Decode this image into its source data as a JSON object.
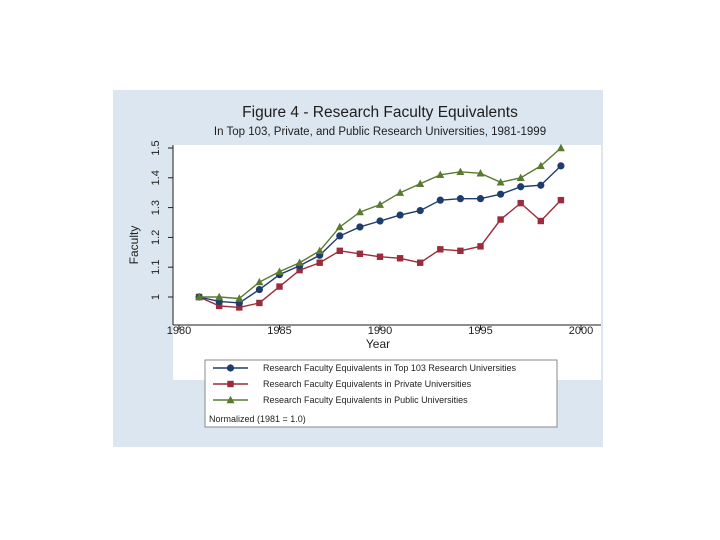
{
  "chart_data": {
    "type": "line",
    "title": "Figure 4 - Research Faculty Equivalents",
    "subtitle": "In Top 103, Private, and Public Research Universities, 1981-1999",
    "xlabel": "Year",
    "ylabel": "Faculty",
    "xlim": [
      1980,
      2000
    ],
    "ylim": [
      0.95,
      1.5
    ],
    "xticks": [
      1980,
      1985,
      1990,
      1995,
      2000
    ],
    "yticks": [
      1,
      1.1,
      1.2,
      1.3,
      1.4,
      1.5
    ],
    "xtick_labels": [
      "1980",
      "1985",
      "1990",
      "1995",
      "2000"
    ],
    "ytick_labels": [
      "1",
      "1.1",
      "1.2",
      "1.3",
      "1.4",
      "1.5"
    ],
    "grid": false,
    "legend_position": "bottom",
    "x": [
      1981,
      1982,
      1983,
      1984,
      1985,
      1986,
      1987,
      1988,
      1989,
      1990,
      1991,
      1992,
      1993,
      1994,
      1995,
      1996,
      1997,
      1998,
      1999
    ],
    "series": [
      {
        "name": "Research Faculty Equivalents in Top 103 Research Universities",
        "color": "#1f3d6b",
        "marker": "circle",
        "values": [
          1.0,
          0.985,
          0.98,
          1.025,
          1.075,
          1.105,
          1.14,
          1.205,
          1.235,
          1.255,
          1.275,
          1.29,
          1.325,
          1.33,
          1.33,
          1.345,
          1.37,
          1.375,
          1.44
        ]
      },
      {
        "name": "Research Faculty Equivalents in Private Universities",
        "color": "#9b2c3b",
        "marker": "square",
        "values": [
          1.0,
          0.97,
          0.965,
          0.98,
          1.035,
          1.09,
          1.115,
          1.155,
          1.145,
          1.135,
          1.13,
          1.115,
          1.16,
          1.155,
          1.17,
          1.26,
          1.315,
          1.255,
          1.325
        ]
      },
      {
        "name": "Research Faculty Equivalents in Public Universities",
        "color": "#5a7a30",
        "marker": "triangle",
        "values": [
          1.0,
          1.0,
          0.995,
          1.05,
          1.085,
          1.115,
          1.155,
          1.235,
          1.285,
          1.31,
          1.35,
          1.38,
          1.41,
          1.42,
          1.415,
          1.385,
          1.4,
          1.44,
          1.5
        ]
      }
    ],
    "legend_note": "Normalized (1981 = 1.0)"
  }
}
